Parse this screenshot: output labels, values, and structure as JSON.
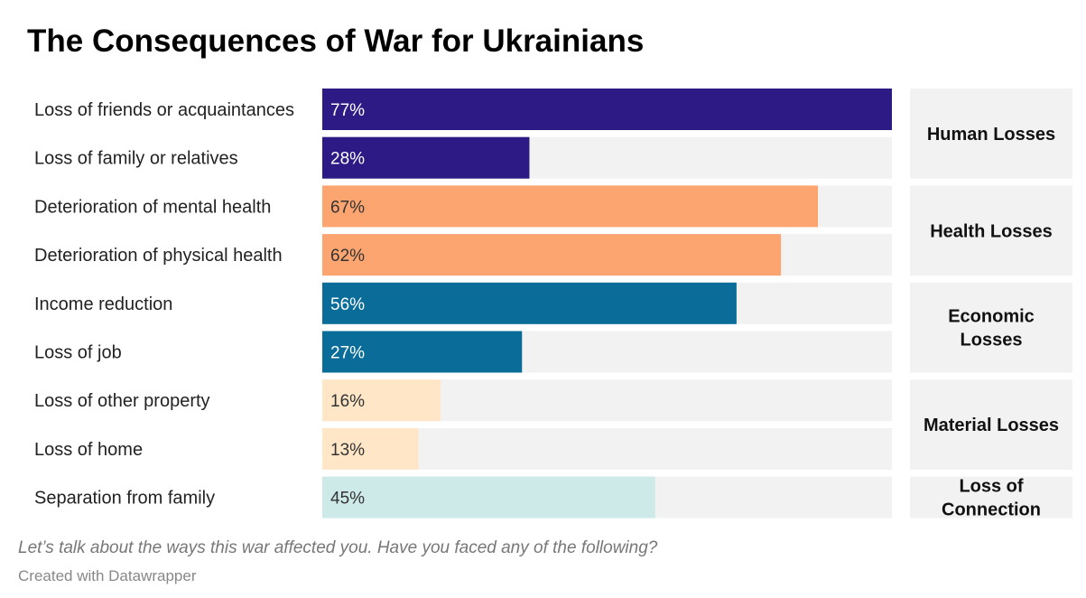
{
  "colors": {
    "background_track": "#f2f2f2",
    "group_box": "#f2f2f2",
    "text_dark": "#222222",
    "human": "#2e1a84",
    "health": "#fca570",
    "economic": "#0a6d99",
    "material": "#ffe6c7",
    "connection": "#cdeae9",
    "label_light": "#ffffff",
    "label_dark": "#333333"
  },
  "chart_data": {
    "type": "bar",
    "orientation": "horizontal",
    "title": "The Consequences of War for Ukrainians",
    "xlim": [
      0,
      77
    ],
    "grid": false,
    "legend": "none",
    "categories": [
      "Loss of friends or acquaintances",
      "Loss of family or relatives",
      "Deterioration of mental health",
      "Deterioration of physical health",
      "Income reduction",
      "Loss of job",
      "Loss of other property",
      "Loss of home",
      "Separation from family"
    ],
    "values": [
      77,
      28,
      67,
      62,
      56,
      27,
      16,
      13,
      45
    ],
    "value_labels": [
      "77%",
      "28%",
      "67%",
      "62%",
      "56%",
      "27%",
      "16%",
      "13%",
      "45%"
    ],
    "bar_group": [
      0,
      0,
      1,
      1,
      2,
      2,
      3,
      3,
      4
    ],
    "groups": [
      {
        "lines": [
          "Human Losses"
        ],
        "color_key": "human",
        "label_color": "label_light"
      },
      {
        "lines": [
          "Health Losses"
        ],
        "color_key": "health",
        "label_color": "label_dark"
      },
      {
        "lines": [
          "Economic",
          "Losses"
        ],
        "color_key": "economic",
        "label_color": "label_light"
      },
      {
        "lines": [
          "Material Losses"
        ],
        "color_key": "material",
        "label_color": "label_dark"
      },
      {
        "lines": [
          "Loss of",
          "Connection"
        ],
        "color_key": "connection",
        "label_color": "label_dark"
      }
    ]
  },
  "footer": {
    "note": "Let’s talk about the ways this war affected you. Have you faced any of the following?",
    "credit": "Created with Datawrapper"
  }
}
